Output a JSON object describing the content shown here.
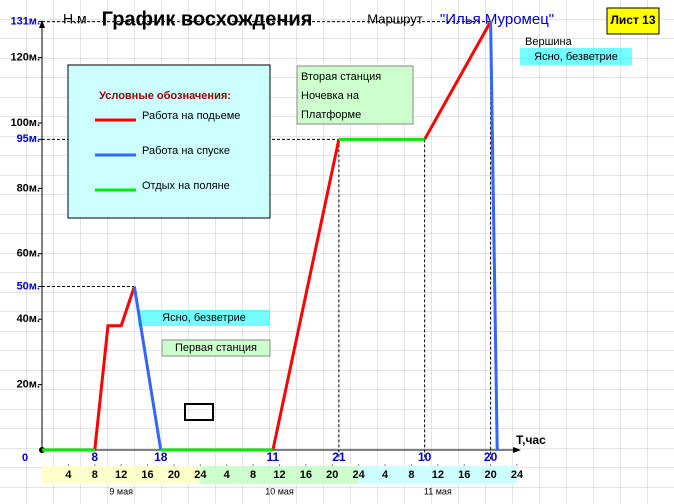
{
  "chart_data": {
    "type": "line",
    "title": "График восхождения",
    "route_label": "Маршрут",
    "route_name": "\"Илья Муромец\"",
    "sheet": "Лист 13",
    "y_label": "Н.м",
    "x_label": "Т,час",
    "legend_title": "Условные обозначения:",
    "series": [
      {
        "name": "Работа на подьеме",
        "color": "#ff0000",
        "x": [
          8,
          10,
          12,
          14,
          null,
          35,
          45,
          null,
          58,
          68
        ],
        "values": [
          0,
          38,
          38,
          50,
          null,
          0,
          95,
          null,
          95,
          131
        ]
      },
      {
        "name": "Работа на спуске",
        "color": "#3366ff",
        "x": [
          14,
          18,
          null,
          68,
          69
        ],
        "values": [
          50,
          0,
          null,
          131,
          0
        ]
      },
      {
        "name": "Отдых на поляне",
        "color": "#00ee00",
        "x": [
          0,
          8,
          null,
          18,
          35,
          null,
          45,
          58
        ],
        "values": [
          0,
          0,
          null,
          0,
          0,
          null,
          95,
          95
        ]
      }
    ],
    "xlim": [
      0,
      72
    ],
    "ylim": [
      0,
      131
    ],
    "yticks": [
      0,
      {
        "value": 20,
        "label": "20м."
      },
      {
        "value": 40,
        "label": "40м."
      },
      {
        "value": 50,
        "label": "50м.",
        "color": "#0000cc"
      },
      {
        "value": 60,
        "label": "60м."
      },
      {
        "value": 80,
        "label": "80м."
      },
      {
        "value": 95,
        "label": "95м.",
        "color": "#0000cc"
      },
      {
        "value": 100,
        "label": "100м."
      },
      {
        "value": 120,
        "label": "120м."
      },
      {
        "value": 131,
        "label": "131м.",
        "color": "#0000cc"
      }
    ],
    "xticks": [
      4,
      8,
      12,
      16,
      20,
      24,
      {
        "value": 28,
        "label": "4"
      },
      {
        "value": 32,
        "label": "8"
      },
      {
        "value": 36,
        "label": "12"
      },
      {
        "value": 40,
        "label": "16"
      },
      {
        "value": 44,
        "label": "20"
      },
      {
        "value": 48,
        "label": "24"
      },
      {
        "value": 52,
        "label": "4"
      },
      {
        "value": 56,
        "label": "8"
      },
      {
        "value": 60,
        "label": "12"
      },
      {
        "value": 64,
        "label": "16"
      },
      {
        "value": 68,
        "label": "20"
      },
      {
        "value": 72,
        "label": "24"
      }
    ],
    "key_xticks": [
      8,
      18,
      {
        "value": 35,
        "label": "11"
      },
      {
        "value": 45,
        "label": "21"
      },
      {
        "value": 58,
        "label": "10"
      },
      {
        "value": 68,
        "label": "20"
      }
    ],
    "key_color": "#0000cc",
    "days": [
      {
        "label": "9 мая",
        "color": "#ffffcc"
      },
      {
        "label": "10 мая",
        "color": "#ccffcc"
      },
      {
        "label": "11 мая",
        "color": "#ccffff"
      }
    ],
    "annotations": {
      "summit": "Вершина",
      "weather_top": "Ясно, безветрие",
      "second_station": [
        "Вторая станция",
        "Ночевка на",
        "Платформе"
      ],
      "weather_low": "Ясно, безветрие",
      "first_station": "Первая станция"
    }
  }
}
